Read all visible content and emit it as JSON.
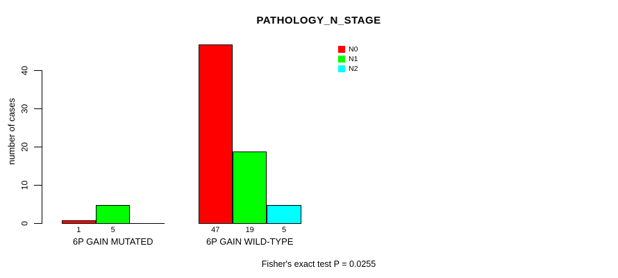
{
  "title": "PATHOLOGY_N_STAGE",
  "chart_data": {
    "type": "bar",
    "title": "PATHOLOGY_N_STAGE",
    "categories": [
      "6P GAIN MUTATED",
      "6P GAIN WILD-TYPE"
    ],
    "series": [
      {
        "name": "N0",
        "color": "#ff0000",
        "values": [
          1,
          47
        ]
      },
      {
        "name": "N1",
        "color": "#00ff00",
        "values": [
          5,
          19
        ]
      },
      {
        "name": "N2",
        "color": "#00ffff",
        "values": [
          0,
          5
        ]
      }
    ],
    "ylabel": "number of cases",
    "xlabel": "",
    "yticks": [
      0,
      10,
      20,
      30,
      40
    ],
    "ylim": [
      0,
      47
    ],
    "grid": false,
    "legend_position": "top-right",
    "bar_value_labels_visible": true,
    "zero_values_unlabeled": true,
    "annotation": "Fisher's exact test P = 0.0255"
  }
}
